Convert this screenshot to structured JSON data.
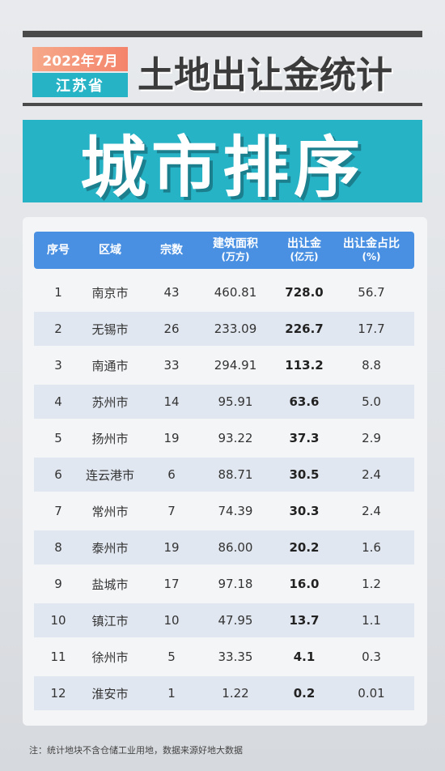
{
  "header": {
    "date": "2022年7月",
    "province": "江苏省",
    "title": "土地出让金统计",
    "banner": "城市排序"
  },
  "table": {
    "columns": [
      {
        "label": "序号",
        "sub": ""
      },
      {
        "label": "区域",
        "sub": ""
      },
      {
        "label": "宗数",
        "sub": ""
      },
      {
        "label": "建筑面积",
        "sub": "(万方)"
      },
      {
        "label": "出让金",
        "sub": "(亿元)"
      },
      {
        "label": "出让金占比",
        "sub": "(%)"
      }
    ],
    "rows": [
      [
        "1",
        "南京市",
        "43",
        "460.81",
        "728.0",
        "56.7"
      ],
      [
        "2",
        "无锡市",
        "26",
        "233.09",
        "226.7",
        "17.7"
      ],
      [
        "3",
        "南通市",
        "33",
        "294.91",
        "113.2",
        "8.8"
      ],
      [
        "4",
        "苏州市",
        "14",
        "95.91",
        "63.6",
        "5.0"
      ],
      [
        "5",
        "扬州市",
        "19",
        "93.22",
        "37.3",
        "2.9"
      ],
      [
        "6",
        "连云港市",
        "6",
        "88.71",
        "30.5",
        "2.4"
      ],
      [
        "7",
        "常州市",
        "7",
        "74.39",
        "30.3",
        "2.4"
      ],
      [
        "8",
        "泰州市",
        "19",
        "86.00",
        "20.2",
        "1.6"
      ],
      [
        "9",
        "盐城市",
        "17",
        "97.18",
        "16.0",
        "1.2"
      ],
      [
        "10",
        "镇江市",
        "10",
        "47.95",
        "13.7",
        "1.1"
      ],
      [
        "11",
        "徐州市",
        "5",
        "33.35",
        "4.1",
        "0.3"
      ],
      [
        "12",
        "淮安市",
        "1",
        "1.22",
        "0.2",
        "0.01"
      ]
    ]
  },
  "footnote": "注：统计地块不含仓储工业用地，数据来源好地大数据",
  "colors": {
    "accent": "#27b3c6",
    "header_blue": "#4a90e2",
    "date_badge": "#f4846b"
  }
}
